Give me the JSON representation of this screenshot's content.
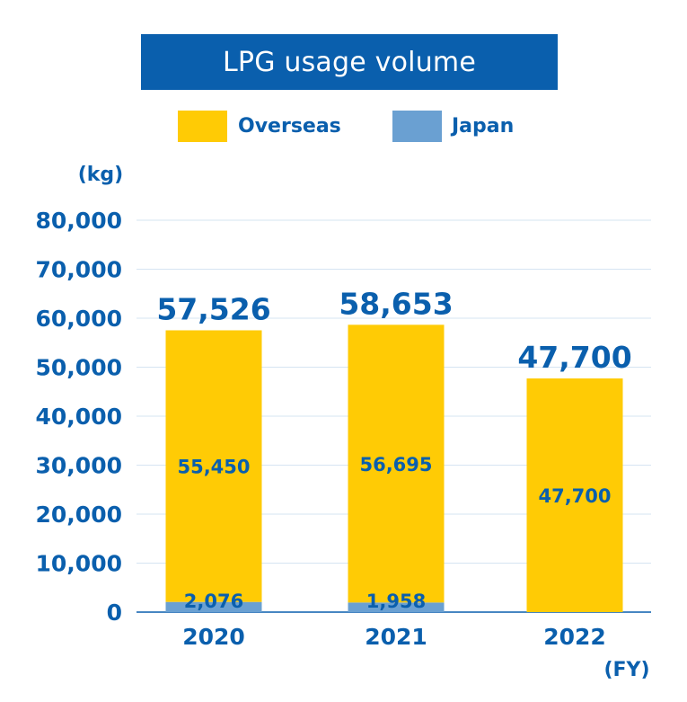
{
  "chart_data": {
    "type": "bar",
    "stacked": true,
    "title": "LPG usage volume",
    "ylabel": "(kg)",
    "xlabel": "(FY)",
    "categories": [
      "2020",
      "2021",
      "2022"
    ],
    "series": [
      {
        "name": "Japan",
        "color": "#6aa0d2",
        "values": [
          2076,
          1958,
          null
        ],
        "labels": [
          "2,076",
          "1,958",
          ""
        ]
      },
      {
        "name": "Overseas",
        "color": "#ffcb05",
        "values": [
          55450,
          56695,
          47700
        ],
        "labels": [
          "55,450",
          "56,695",
          "47,700"
        ]
      }
    ],
    "totals": [
      "57,526",
      "58,653",
      "47,700"
    ],
    "ylim": [
      0,
      80000
    ],
    "yticks": [
      0,
      10000,
      20000,
      30000,
      40000,
      50000,
      60000,
      70000,
      80000
    ],
    "ytick_labels": [
      "0",
      "10,000",
      "20,000",
      "30,000",
      "40,000",
      "50,000",
      "60,000",
      "70,000",
      "80,000"
    ],
    "grid": true,
    "legend_position": "top-center",
    "legend": [
      {
        "label": "Overseas",
        "color": "#ffcb05"
      },
      {
        "label": "Japan",
        "color": "#6aa0d2"
      }
    ],
    "text_color": "#0a5fad"
  }
}
